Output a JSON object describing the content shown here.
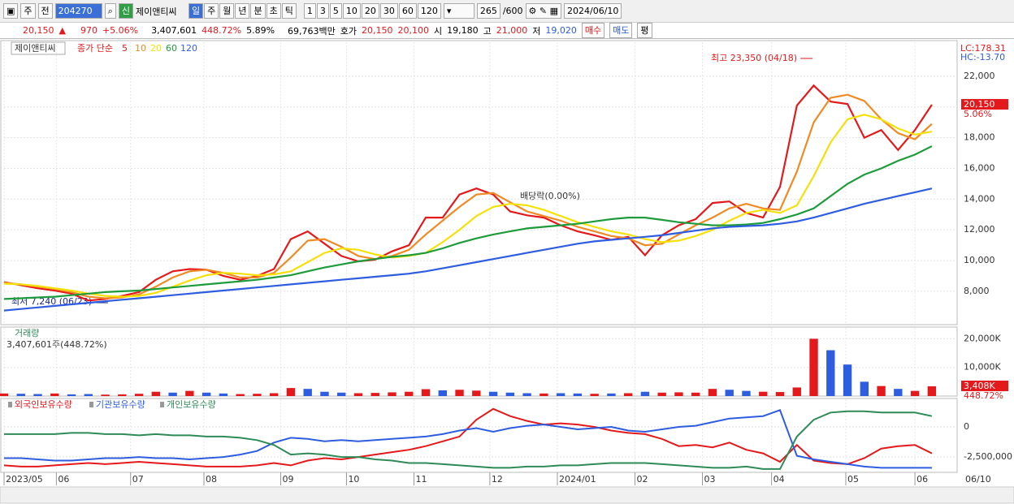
{
  "toolbar": {
    "market": "주",
    "prev": "전",
    "code": "204270",
    "badge": "신",
    "name": "제이앤티씨",
    "periods": [
      "일",
      "주",
      "월",
      "년",
      "분",
      "초",
      "틱"
    ],
    "intervals": [
      "1",
      "3",
      "5",
      "10",
      "20",
      "30",
      "60",
      "120"
    ],
    "count": "265",
    "max": "/600",
    "date": "2024/06/10"
  },
  "info_bar": {
    "price": "20,150",
    "arrow": "▲",
    "change": "970",
    "rate": "+5.06%",
    "volume": "3,407,601",
    "volume_rate": "448.72%",
    "turnover": "5.89%",
    "amount": "69,763백만",
    "quote_label": "호가",
    "ask": "20,150",
    "bid": "20,100",
    "open_label": "시",
    "open": "19,180",
    "high_label": "고",
    "high": "21,000",
    "low_label": "저",
    "low": "19,020",
    "buy": "매수",
    "sell": "매도",
    "avg": "평"
  },
  "chart_data": [
    {
      "type": "line",
      "name": "제이앤티씨",
      "legend_prefix": "종가 단순",
      "xlim": [
        0,
        56.5
      ],
      "ylim": [
        5830,
        24220
      ],
      "yticks": [
        {
          "value": 8000,
          "label": "8,000"
        },
        {
          "value": 10000,
          "label": "10,000"
        },
        {
          "value": 12000,
          "label": "12,000"
        },
        {
          "value": 14000,
          "label": "14,000"
        },
        {
          "value": 16000,
          "label": "16,000"
        },
        {
          "value": 18000,
          "label": "18,000"
        },
        {
          "value": 20000,
          "label": "20,000"
        },
        {
          "value": 22000,
          "label": "22,000"
        }
      ],
      "lc": "LC:178.31",
      "hc": "HC:-13.70",
      "price_tag": "20,150",
      "change_tag": "5.06%",
      "annotations": [
        "최고 23,350 (04/18)",
        "최저 7,240 (06/23)",
        "배당락(0.00%)"
      ],
      "series": [
        {
          "name": "5",
          "color": "#e3191c",
          "values": [
            8600,
            8400,
            8200,
            8050,
            7850,
            7400,
            7500,
            7700,
            7950,
            8750,
            9300,
            9450,
            9400,
            9000,
            8750,
            9000,
            9450,
            11400,
            11900,
            11100,
            10300,
            9950,
            10050,
            10600,
            11000,
            12800,
            12800,
            14300,
            14700,
            14300,
            13200,
            12950,
            12800,
            12300,
            11900,
            11650,
            11350,
            11550,
            10350,
            11650,
            12300,
            12700,
            13750,
            13850,
            13100,
            12800,
            14800,
            20100,
            21400,
            20350,
            20200,
            18000,
            18500,
            17200,
            18500,
            20150
          ]
        },
        {
          "name": "10",
          "color": "#f08a24",
          "values": [
            8550,
            8450,
            8300,
            8150,
            7950,
            7650,
            7550,
            7600,
            7800,
            8300,
            8900,
            9300,
            9400,
            9200,
            8900,
            8900,
            9200,
            10200,
            11300,
            11400,
            10900,
            10300,
            10100,
            10300,
            10700,
            11700,
            12600,
            13500,
            14300,
            14400,
            13800,
            13200,
            12900,
            12600,
            12200,
            11900,
            11600,
            11450,
            11000,
            11100,
            11700,
            12300,
            12800,
            13400,
            13700,
            13400,
            13300,
            15800,
            19000,
            20600,
            20800,
            20400,
            19200,
            18300,
            17900,
            18900
          ]
        },
        {
          "name": "20",
          "color": "#f5e10a",
          "values": [
            8500,
            8450,
            8350,
            8200,
            8050,
            7850,
            7700,
            7650,
            7700,
            7900,
            8300,
            8700,
            9050,
            9200,
            9150,
            9050,
            9100,
            9300,
            9900,
            10500,
            10800,
            10700,
            10400,
            10200,
            10300,
            10500,
            11200,
            12000,
            12900,
            13500,
            13700,
            13600,
            13300,
            12900,
            12500,
            12200,
            11900,
            11700,
            11400,
            11200,
            11300,
            11600,
            12000,
            12600,
            13100,
            13300,
            13100,
            13600,
            15500,
            17700,
            19200,
            19500,
            19200,
            18600,
            18200,
            18400
          ]
        },
        {
          "name": "60",
          "color": "#1e9b3a",
          "values": [
            7500,
            7550,
            7600,
            7650,
            7750,
            7850,
            7950,
            8000,
            8050,
            8150,
            8250,
            8350,
            8450,
            8550,
            8650,
            8750,
            8900,
            9050,
            9300,
            9550,
            9750,
            9950,
            10100,
            10250,
            10350,
            10500,
            10800,
            11150,
            11450,
            11700,
            11900,
            12100,
            12200,
            12300,
            12400,
            12550,
            12700,
            12800,
            12800,
            12650,
            12500,
            12400,
            12300,
            12300,
            12350,
            12450,
            12700,
            13000,
            13400,
            14200,
            15000,
            15600,
            16000,
            16500,
            16900,
            17450
          ]
        },
        {
          "name": "120",
          "color": "#2e5de0",
          "values": [
            6750,
            6850,
            6950,
            7050,
            7150,
            7250,
            7350,
            7450,
            7550,
            7650,
            7750,
            7850,
            7950,
            8050,
            8150,
            8250,
            8350,
            8450,
            8550,
            8650,
            8750,
            8850,
            8950,
            9050,
            9150,
            9300,
            9500,
            9700,
            9900,
            10100,
            10300,
            10500,
            10700,
            10900,
            11100,
            11250,
            11350,
            11450,
            11550,
            11650,
            11800,
            11950,
            12100,
            12200,
            12250,
            12300,
            12400,
            12550,
            12800,
            13100,
            13400,
            13700,
            13950,
            14200,
            14450,
            14700
          ]
        }
      ]
    },
    {
      "type": "bar",
      "title": "거래량",
      "subtitle": "3,407,601주(448.72%)",
      "xlim": [
        0,
        56.5
      ],
      "ylim": [
        0,
        23800
      ],
      "yticks": [
        {
          "value": 10000,
          "label": "10,000K"
        },
        {
          "value": 20000,
          "label": "20,000K"
        }
      ],
      "rate_tag": "448.72%",
      "values": [
        900,
        800,
        700,
        900,
        600,
        700,
        500,
        600,
        800,
        1500,
        1200,
        1800,
        1200,
        900,
        700,
        800,
        1000,
        2800,
        2500,
        1500,
        1200,
        1000,
        1100,
        1300,
        1500,
        2400,
        2000,
        2200,
        1900,
        1500,
        1200,
        1000,
        900,
        1000,
        900,
        800,
        900,
        1000,
        1500,
        1200,
        1300,
        1200,
        2500,
        2200,
        1800,
        1500,
        1400,
        3000,
        20000,
        16000,
        11000,
        5000,
        3500,
        2500,
        1800,
        3408
      ],
      "value_labels": [
        null,
        null,
        null,
        null,
        null,
        null,
        null,
        null,
        null,
        null,
        null,
        null,
        null,
        null,
        null,
        null,
        null,
        null,
        null,
        null,
        null,
        null,
        null,
        null,
        null,
        null,
        null,
        null,
        null,
        null,
        null,
        null,
        null,
        null,
        null,
        null,
        null,
        null,
        null,
        null,
        null,
        null,
        null,
        null,
        null,
        null,
        null,
        null,
        null,
        null,
        null,
        null,
        null,
        null,
        null,
        "3,408K"
      ],
      "colors": [
        "#e3191c",
        "#2e5de0",
        "#2e5de0",
        "#e3191c",
        "#2e5de0",
        "#2e5de0",
        "#e3191c",
        "#e3191c",
        "#e3191c",
        "#e3191c",
        "#2e5de0",
        "#e3191c",
        "#2e5de0",
        "#2e5de0",
        "#e3191c",
        "#e3191c",
        "#e3191c",
        "#e3191c",
        "#2e5de0",
        "#2e5de0",
        "#2e5de0",
        "#e3191c",
        "#e3191c",
        "#e3191c",
        "#e3191c",
        "#e3191c",
        "#2e5de0",
        "#e3191c",
        "#e3191c",
        "#2e5de0",
        "#2e5de0",
        "#2e5de0",
        "#e3191c",
        "#2e5de0",
        "#2e5de0",
        "#e3191c",
        "#2e5de0",
        "#e3191c",
        "#2e5de0",
        "#e3191c",
        "#e3191c",
        "#e3191c",
        "#e3191c",
        "#2e5de0",
        "#2e5de0",
        "#e3191c",
        "#e3191c",
        "#e3191c",
        "#e3191c",
        "#2e5de0",
        "#2e5de0",
        "#2e5de0",
        "#e3191c",
        "#2e5de0",
        "#e3191c",
        "#e3191c"
      ]
    },
    {
      "type": "line",
      "xlim": [
        0,
        56.5
      ],
      "ylim": [
        -3780000,
        2300000
      ],
      "yticks": [
        {
          "value": -2500000,
          "label": "-2,500,000"
        },
        0
      ],
      "xticks": [
        {
          "value": 0,
          "label": "2023/05"
        },
        {
          "value": 3.1,
          "label": "06"
        },
        {
          "value": 7.5,
          "label": "07"
        },
        {
          "value": 11.85,
          "label": "08"
        },
        {
          "value": 16.4,
          "label": "09"
        },
        {
          "value": 20.3,
          "label": "10"
        },
        {
          "value": 24.3,
          "label": "11"
        },
        {
          "value": 28.8,
          "label": "12"
        },
        {
          "value": 32.8,
          "label": "2024/01"
        },
        {
          "value": 37.4,
          "label": "02"
        },
        {
          "value": 41.4,
          "label": "03"
        },
        {
          "value": 45.5,
          "label": "04"
        },
        {
          "value": 49.9,
          "label": "05"
        },
        {
          "value": 54,
          "label": "06"
        }
      ],
      "last_date": "06/10",
      "series": [
        {
          "name": "외국인보유수량",
          "color": "#e3191c",
          "values": [
            -3200000,
            -3300000,
            -3300000,
            -3200000,
            -3100000,
            -3000000,
            -3100000,
            -3000000,
            -2900000,
            -3000000,
            -3100000,
            -3200000,
            -3300000,
            -3300000,
            -3300000,
            -3200000,
            -3000000,
            -3200000,
            -2800000,
            -2600000,
            -2700000,
            -2500000,
            -2300000,
            -2100000,
            -1900000,
            -1600000,
            -1200000,
            -800000,
            600000,
            1500000,
            900000,
            500000,
            200000,
            300000,
            200000,
            0,
            -300000,
            -500000,
            -600000,
            -1000000,
            -1600000,
            -1500000,
            -1700000,
            -1300000,
            -1900000,
            -2200000,
            -2900000,
            -1500000,
            -2800000,
            -3000000,
            -3100000,
            -2600000,
            -1800000,
            -1600000,
            -1500000,
            -2200000
          ]
        },
        {
          "name": "기관보유수량",
          "color": "#2e5de0",
          "values": [
            -2600000,
            -2600000,
            -2700000,
            -2800000,
            -2800000,
            -2700000,
            -2600000,
            -2600000,
            -2500000,
            -2600000,
            -2600000,
            -2700000,
            -2600000,
            -2500000,
            -2300000,
            -2000000,
            -1300000,
            -900000,
            -1000000,
            -1200000,
            -1100000,
            -1200000,
            -1100000,
            -1000000,
            -900000,
            -800000,
            -600000,
            -300000,
            -100000,
            -400000,
            -100000,
            100000,
            200000,
            0,
            -200000,
            -100000,
            0,
            -300000,
            -400000,
            -200000,
            0,
            100000,
            400000,
            700000,
            800000,
            900000,
            1400000,
            -2400000,
            -2700000,
            -2900000,
            -3100000,
            -3300000,
            -3400000,
            -3400000,
            -3400000,
            -3400000
          ]
        },
        {
          "name": "개인보유수량",
          "color": "#2e8b57",
          "values": [
            -600000,
            -600000,
            -600000,
            -600000,
            -500000,
            -500000,
            -600000,
            -600000,
            -700000,
            -600000,
            -700000,
            -700000,
            -800000,
            -800000,
            -900000,
            -1100000,
            -1500000,
            -2300000,
            -2200000,
            -2300000,
            -2500000,
            -2500000,
            -2700000,
            -2800000,
            -3000000,
            -3000000,
            -3100000,
            -3200000,
            -3300000,
            -3400000,
            -3400000,
            -3300000,
            -3300000,
            -3200000,
            -3200000,
            -3100000,
            -3000000,
            -3000000,
            -3000000,
            -3100000,
            -3200000,
            -3300000,
            -3400000,
            -3400000,
            -3300000,
            -3500000,
            -3500000,
            -800000,
            600000,
            1200000,
            1300000,
            1300000,
            1200000,
            1200000,
            1200000,
            900000
          ]
        }
      ]
    }
  ]
}
